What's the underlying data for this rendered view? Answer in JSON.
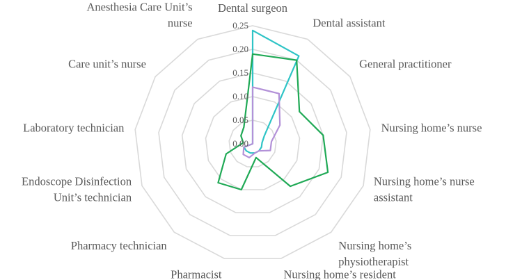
{
  "chart_data": {
    "type": "radar",
    "categories": [
      "Dental surgeon",
      "Dental assistant",
      "General practitioner",
      "Nursing home’s nurse",
      "Nursing home’s nurse assistant",
      "Nursing home’s physiotherapist",
      "Nursing home’s resident",
      "Pharmacist",
      "Pharmacy technician",
      "Endoscope Disinfection Unit’s technician",
      "Laboratory technician",
      "Care unit’s nurse",
      "Anesthesia Care Unit’s nurse"
    ],
    "range": [
      0,
      0.25
    ],
    "ticks": [
      "0.00",
      "0.05",
      "0.10",
      "0.15",
      "0.20",
      "0.25"
    ],
    "grid": true,
    "legend": "none",
    "series": [
      {
        "color": "#2ec4c6",
        "values": [
          0.24,
          0.21,
          0.03,
          0.02,
          0.02,
          0.02,
          0.02,
          0.02,
          0.02,
          0.02,
          0.0,
          0.0,
          0.0
        ]
      },
      {
        "color": "#b391d8",
        "values": [
          0.12,
          0.12,
          0.07,
          0.04,
          0.04,
          0.02,
          0.02,
          0.03,
          0.03,
          0.02,
          0.0,
          0.0,
          0.0
        ]
      },
      {
        "color": "#1fa955",
        "values": [
          0.19,
          0.2,
          0.12,
          0.15,
          0.17,
          0.12,
          0.03,
          0.1,
          0.11,
          0.06,
          0.02,
          0.03,
          0.04
        ]
      }
    ]
  }
}
